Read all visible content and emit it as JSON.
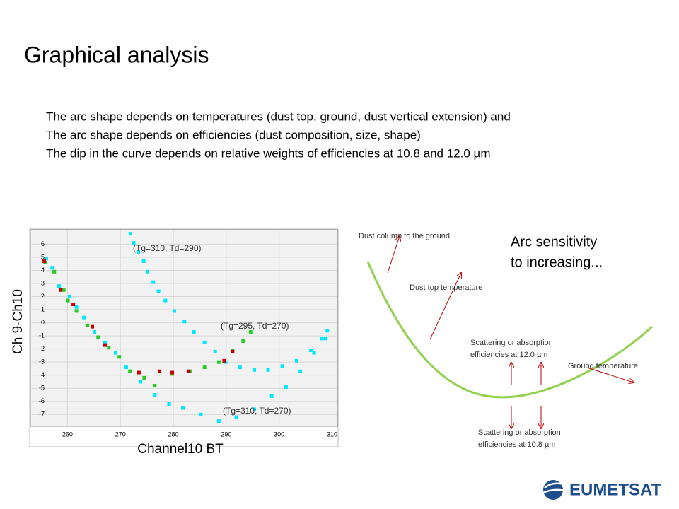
{
  "title": "Graphical analysis",
  "bullets": [
    "The arc shape depends on temperatures (dust top, ground, dust vertical extension) and",
    "The arc shape depends on efficiencies (dust composition, size, shape)",
    "The dip in the curve depends on relative weights of efficiencies at 10.8 and 12.0 µm"
  ],
  "chart_data": {
    "type": "scatter",
    "x_label": "Channel10  BT",
    "y_label": "Ch 9-Ch10",
    "xlim": [
      253,
      311
    ],
    "ylim": [
      -7.9,
      7.1
    ],
    "xticks": [
      260,
      270,
      280,
      290,
      300,
      310
    ],
    "yticks": [
      -7,
      -6,
      -5,
      -4,
      -3,
      -2,
      -1,
      0,
      1,
      2,
      3,
      4,
      5,
      6
    ],
    "grid": true,
    "annotations": [
      "(Tg=310, Td=290)",
      "(Tg=295, Td=270)",
      "(Tg=310, Td=270)"
    ],
    "series": [
      {
        "color": "#00e8ff",
        "x": [
          271.9,
          272.5,
          273.4,
          274.4,
          275.1,
          276.2,
          277.2,
          278.5,
          280.2,
          282.1,
          283.9,
          285.9,
          287.9,
          289.9,
          292.6,
          295.3,
          297.9,
          300.6,
          303.3,
          306,
          308,
          309.1,
          256,
          257.1,
          258.4,
          260.4,
          261.7,
          263.1,
          265.1,
          267.1,
          269.1,
          271.1,
          273.8,
          276.5,
          279.2,
          281.8,
          285.2,
          288.6,
          291.9,
          295.3,
          298.6,
          301.3,
          304,
          306.6,
          308.7
        ],
        "values": [
          6.8,
          6.1,
          5.4,
          4.7,
          3.9,
          3.1,
          2.4,
          1.7,
          0.9,
          0.1,
          -0.7,
          -1.5,
          -2.2,
          -3.0,
          -3.4,
          -3.6,
          -3.6,
          -3.3,
          -2.9,
          -2.1,
          -1.2,
          -0.6,
          4.9,
          4.2,
          2.8,
          2,
          1.2,
          0.4,
          -0.7,
          -1.5,
          -2.3,
          -3.4,
          -4.5,
          -5.5,
          -6.2,
          -6.5,
          -7,
          -7.5,
          -7.2,
          -6.6,
          -5.6,
          -4.9,
          -3.7,
          -2.3,
          -1.2
        ]
      },
      {
        "color": "#22cc22",
        "x": [
          255.8,
          257.5,
          259.3,
          260.1,
          261.7,
          263.8,
          265.8,
          267.8,
          269.8,
          271.8,
          274.5,
          276.5,
          279.8,
          283.2,
          285.9,
          288.6,
          291.2,
          293.2,
          294.6
        ],
        "values": [
          4.6,
          3.9,
          2.5,
          1.7,
          0.9,
          -0.2,
          -1.1,
          -1.9,
          -2.6,
          -3.7,
          -4.2,
          -4.8,
          -3.9,
          -3.7,
          -3.4,
          -3,
          -2.1,
          -1.4,
          -0.7
        ]
      },
      {
        "color": "#cc0000",
        "x": [
          255.6,
          258.7,
          261.1,
          264.7,
          267.1,
          273.5,
          277.4,
          279.8,
          282.9,
          289.6,
          291.2
        ],
        "values": [
          4.7,
          2.5,
          1.4,
          -0.3,
          -1.7,
          -3.8,
          -3.7,
          -3.8,
          -3.7,
          -2.9,
          -2.2
        ]
      }
    ]
  },
  "diagram": {
    "heading": [
      "Arc sensitivity",
      "to increasing..."
    ],
    "dust_column": "Dust column to the ground",
    "dust_top": "Dust top temperature",
    "eff_12": [
      "Scattering or absorption",
      "efficiencies at 12.0 µm"
    ],
    "ground": "Ground temperature",
    "eff_10": [
      "Scattering or absorption",
      "efficiencies at 10.8 µm"
    ]
  },
  "logo": "EUMETSAT"
}
